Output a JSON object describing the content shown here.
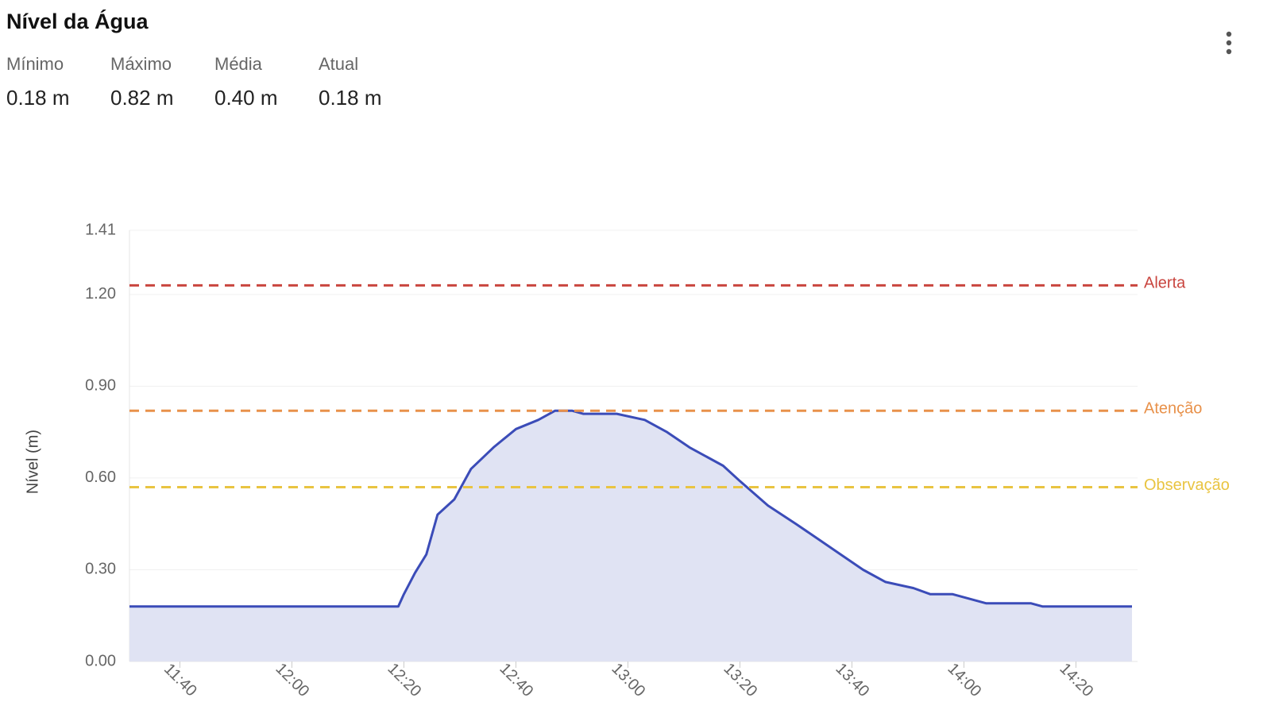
{
  "header": {
    "title": "Nível da Água",
    "stats": [
      {
        "label": "Mínimo",
        "value": "0.18 m"
      },
      {
        "label": "Máximo",
        "value": "0.82 m"
      },
      {
        "label": "Média",
        "value": "0.40 m"
      },
      {
        "label": "Atual",
        "value": "0.18 m"
      }
    ]
  },
  "chart_data": {
    "type": "area",
    "y_label": "Nível (m)",
    "color": "#3b4cb8",
    "fill": "#e0e3f3",
    "grid": true,
    "x": [
      "11:31",
      "12:19",
      "12:20",
      "12:22",
      "12:24",
      "12:26",
      "12:29",
      "12:32",
      "12:36",
      "12:40",
      "12:44",
      "12:47",
      "12:50",
      "12:52",
      "12:58",
      "13:03",
      "13:07",
      "13:11",
      "13:17",
      "13:20",
      "13:25",
      "13:30",
      "13:34",
      "13:38",
      "13:42",
      "13:46",
      "13:51",
      "13:54",
      "13:58",
      "14:04",
      "14:12",
      "14:14",
      "14:30"
    ],
    "values": [
      0.18,
      0.18,
      0.22,
      0.29,
      0.35,
      0.48,
      0.53,
      0.63,
      0.7,
      0.76,
      0.79,
      0.82,
      0.82,
      0.81,
      0.81,
      0.79,
      0.75,
      0.7,
      0.64,
      0.59,
      0.51,
      0.45,
      0.4,
      0.35,
      0.3,
      0.26,
      0.24,
      0.22,
      0.22,
      0.19,
      0.19,
      0.18,
      0.18
    ],
    "xlim": [
      "11:31",
      "14:31"
    ],
    "xticks": [
      "11:40",
      "12:00",
      "12:20",
      "12:40",
      "13:00",
      "13:20",
      "13:40",
      "14:00",
      "14:20"
    ],
    "ylim": [
      0,
      1.41
    ],
    "yticks": [
      {
        "value": 0,
        "label": "0.00"
      },
      {
        "value": 0.3,
        "label": "0.30"
      },
      {
        "value": 0.6,
        "label": "0.60"
      },
      {
        "value": 0.9,
        "label": "0.90"
      },
      {
        "value": 1.2,
        "label": "1.20"
      },
      1.41
    ],
    "thresholds": [
      {
        "name": "Alerta",
        "value": 1.23,
        "color": "#c9453f"
      },
      {
        "name": "Atenção",
        "value": 0.82,
        "color": "#e8914a"
      },
      {
        "name": "Observação",
        "value": 0.57,
        "color": "#e9c441"
      }
    ]
  }
}
